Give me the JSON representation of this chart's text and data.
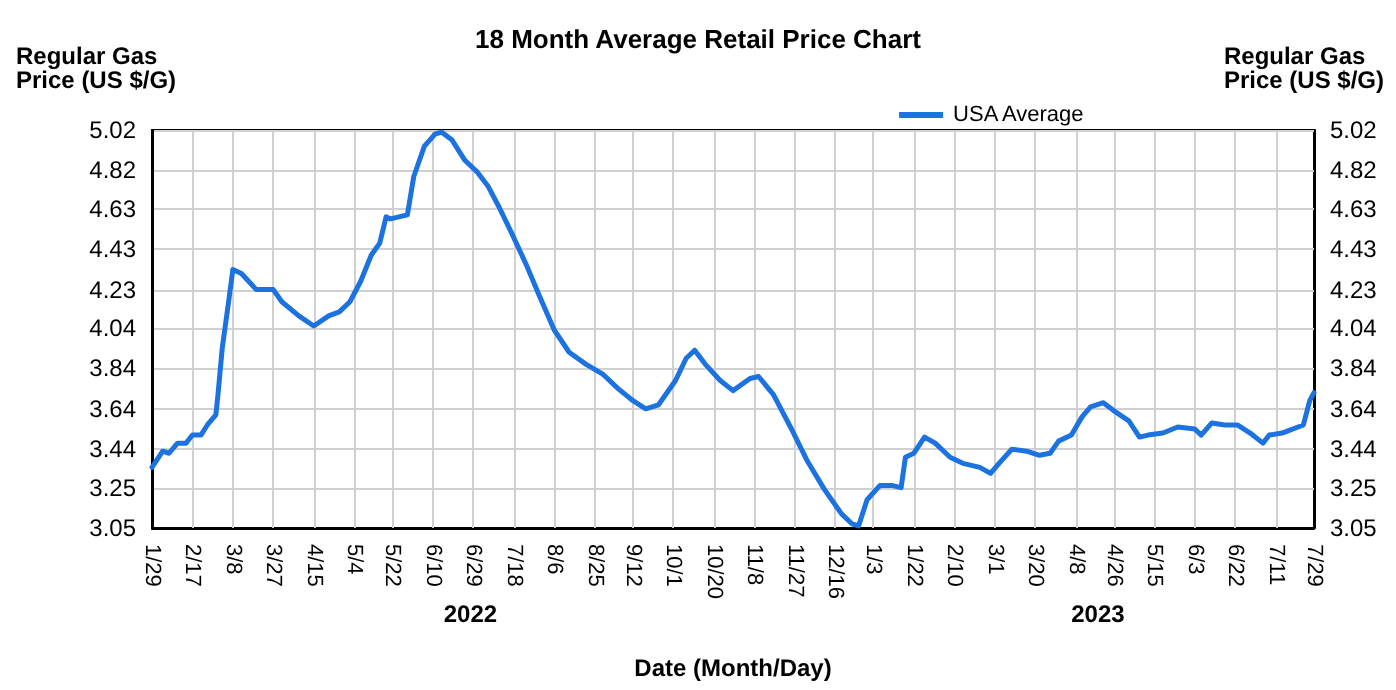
{
  "chart_data": {
    "type": "line",
    "title": "18 Month Average Retail Price Chart",
    "xlabel": "Date (Month/Day)",
    "ylabel": "Regular Gas Price (US $/G)",
    "y2label": "Regular Gas Price (US $/G)",
    "annotations": [
      "2022",
      "2023"
    ],
    "x": [
      "2022-01-29",
      "2022-02-03",
      "2022-02-06",
      "2022-02-10",
      "2022-02-14",
      "2022-02-17",
      "2022-02-21",
      "2022-02-24",
      "2022-02-28",
      "2022-03-01",
      "2022-03-03",
      "2022-03-06",
      "2022-03-08",
      "2022-03-12",
      "2022-03-19",
      "2022-03-27",
      "2022-03-31",
      "2022-04-08",
      "2022-04-15",
      "2022-04-22",
      "2022-04-27",
      "2022-05-02",
      "2022-05-07",
      "2022-05-12",
      "2022-05-16",
      "2022-05-19",
      "2022-05-21",
      "2022-05-25",
      "2022-05-29",
      "2022-06-01",
      "2022-06-06",
      "2022-06-11",
      "2022-06-14",
      "2022-06-19",
      "2022-06-25",
      "2022-07-01",
      "2022-07-06",
      "2022-07-11",
      "2022-07-17",
      "2022-07-24",
      "2022-07-30",
      "2022-08-06",
      "2022-08-13",
      "2022-08-21",
      "2022-08-29",
      "2022-09-05",
      "2022-09-12",
      "2022-09-18",
      "2022-09-24",
      "2022-10-02",
      "2022-10-07",
      "2022-10-11",
      "2022-10-16",
      "2022-10-23",
      "2022-10-29",
      "2022-11-06",
      "2022-11-10",
      "2022-11-17",
      "2022-11-25",
      "2022-12-03",
      "2022-12-11",
      "2022-12-19",
      "2022-12-24",
      "2022-12-27",
      "2022-12-31",
      "2023-01-06",
      "2023-01-12",
      "2023-01-16",
      "2023-01-18",
      "2023-01-22",
      "2023-01-27",
      "2023-02-01",
      "2023-02-08",
      "2023-02-14",
      "2023-02-22",
      "2023-02-27",
      "2023-03-03",
      "2023-03-09",
      "2023-03-16",
      "2023-03-22",
      "2023-03-27",
      "2023-03-31",
      "2023-04-06",
      "2023-04-11",
      "2023-04-15",
      "2023-04-21",
      "2023-04-26",
      "2023-05-03",
      "2023-05-08",
      "2023-05-12",
      "2023-05-19",
      "2023-05-26",
      "2023-06-03",
      "2023-06-06",
      "2023-06-11",
      "2023-06-17",
      "2023-06-23",
      "2023-06-29",
      "2023-07-05",
      "2023-07-08",
      "2023-07-14",
      "2023-07-24",
      "2023-07-27",
      "2023-07-29"
    ],
    "series": [
      {
        "name": "USA Average",
        "color": "#1c73e0",
        "values": [
          3.35,
          3.43,
          3.42,
          3.47,
          3.47,
          3.51,
          3.51,
          3.56,
          3.61,
          3.71,
          3.94,
          4.17,
          4.33,
          4.31,
          4.23,
          4.23,
          4.17,
          4.1,
          4.05,
          4.1,
          4.12,
          4.17,
          4.27,
          4.4,
          4.46,
          4.59,
          4.58,
          4.59,
          4.6,
          4.79,
          4.94,
          5.0,
          5.01,
          4.97,
          4.87,
          4.81,
          4.74,
          4.64,
          4.51,
          4.35,
          4.2,
          4.03,
          3.92,
          3.86,
          3.81,
          3.74,
          3.68,
          3.64,
          3.66,
          3.78,
          3.89,
          3.93,
          3.86,
          3.78,
          3.73,
          3.79,
          3.8,
          3.71,
          3.55,
          3.38,
          3.24,
          3.12,
          3.07,
          3.06,
          3.19,
          3.26,
          3.26,
          3.25,
          3.4,
          3.42,
          3.5,
          3.47,
          3.4,
          3.37,
          3.35,
          3.32,
          3.37,
          3.44,
          3.43,
          3.41,
          3.42,
          3.48,
          3.51,
          3.6,
          3.65,
          3.67,
          3.63,
          3.58,
          3.5,
          3.51,
          3.52,
          3.55,
          3.54,
          3.51,
          3.57,
          3.56,
          3.56,
          3.52,
          3.47,
          3.51,
          3.52,
          3.56,
          3.68,
          3.72
        ]
      }
    ],
    "xlim": [
      "2022-01-29",
      "2023-07-29"
    ],
    "xticks": [
      {
        "value": "2022-01-29",
        "label": "1/29"
      },
      {
        "value": "2022-02-17",
        "label": "2/17"
      },
      {
        "value": "2022-03-08",
        "label": "3/8"
      },
      {
        "value": "2022-03-27",
        "label": "3/27"
      },
      {
        "value": "2022-04-15",
        "label": "4/15"
      },
      {
        "value": "2022-05-04",
        "label": "5/4"
      },
      {
        "value": "2022-05-22",
        "label": "5/22"
      },
      {
        "value": "2022-06-10",
        "label": "6/10"
      },
      {
        "value": "2022-06-29",
        "label": "6/29"
      },
      {
        "value": "2022-07-18",
        "label": "7/18"
      },
      {
        "value": "2022-08-06",
        "label": "8/6"
      },
      {
        "value": "2022-08-25",
        "label": "8/25"
      },
      {
        "value": "2022-09-12",
        "label": "9/12"
      },
      {
        "value": "2022-10-01",
        "label": "10/1"
      },
      {
        "value": "2022-10-20",
        "label": "10/20"
      },
      {
        "value": "2022-11-08",
        "label": "11/8"
      },
      {
        "value": "2022-11-27",
        "label": "11/27"
      },
      {
        "value": "2022-12-16",
        "label": "12/16"
      },
      {
        "value": "2023-01-03",
        "label": "1/3"
      },
      {
        "value": "2023-01-22",
        "label": "1/22"
      },
      {
        "value": "2023-02-10",
        "label": "2/10"
      },
      {
        "value": "2023-03-01",
        "label": "3/1"
      },
      {
        "value": "2023-03-20",
        "label": "3/20"
      },
      {
        "value": "2023-04-08",
        "label": "4/8"
      },
      {
        "value": "2023-04-26",
        "label": "4/26"
      },
      {
        "value": "2023-05-15",
        "label": "5/15"
      },
      {
        "value": "2023-06-03",
        "label": "6/3"
      },
      {
        "value": "2023-06-22",
        "label": "6/22"
      },
      {
        "value": "2023-07-11",
        "label": "7/11"
      },
      {
        "value": "2023-07-29",
        "label": "7/29"
      }
    ],
    "ylim": [
      3.05,
      5.02
    ],
    "yticks": [
      3.05,
      3.25,
      3.44,
      3.64,
      3.84,
      4.04,
      4.23,
      4.43,
      4.63,
      4.82,
      5.02
    ],
    "y2lim": [
      3.05,
      5.02
    ],
    "y2ticks": [
      3.05,
      3.25,
      3.44,
      3.64,
      3.84,
      4.04,
      4.23,
      4.43,
      4.63,
      4.82,
      5.02
    ],
    "grid": true,
    "legend": "top right",
    "marker": "none",
    "line_style": "solid"
  }
}
